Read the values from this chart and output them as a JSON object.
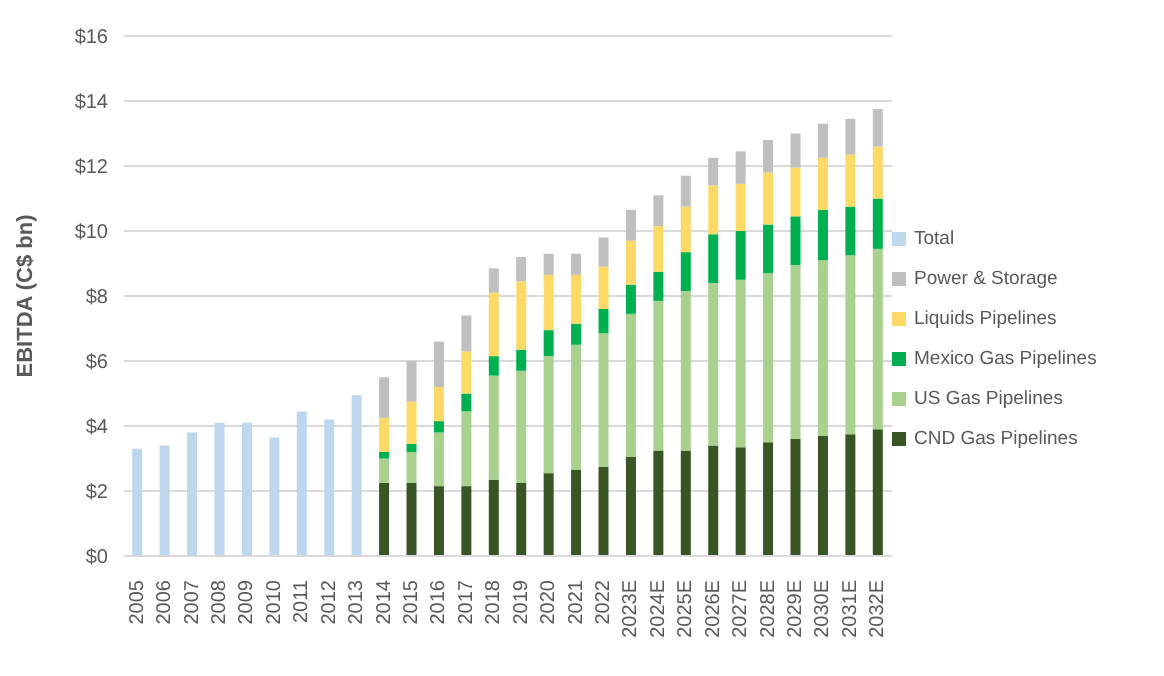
{
  "chart_data": {
    "type": "bar",
    "ylabel": "EBITDA (C$ bn)",
    "stacked": true,
    "grid": "y",
    "legend": "right",
    "categories": [
      "2005",
      "2006",
      "2007",
      "2008",
      "2009",
      "2010",
      "2011",
      "2012",
      "2013",
      "2014",
      "2015",
      "2016",
      "2017",
      "2018",
      "2019",
      "2020",
      "2021",
      "2022",
      "2023E",
      "2024E",
      "2025E",
      "2026E",
      "2027E",
      "2028E",
      "2029E",
      "2030E",
      "2031E",
      "2032E"
    ],
    "ylim": [
      0,
      16
    ],
    "yticks": [
      {
        "value": 0,
        "label": "$0"
      },
      {
        "value": 2,
        "label": "$2"
      },
      {
        "value": 4,
        "label": "$4"
      },
      {
        "value": 6,
        "label": "$6"
      },
      {
        "value": 8,
        "label": "$8"
      },
      {
        "value": 10,
        "label": "$10"
      },
      {
        "value": 12,
        "label": "$12"
      },
      {
        "value": 14,
        "label": "$14"
      },
      {
        "value": 16,
        "label": "$16"
      }
    ],
    "series": [
      {
        "name": "CND Gas Pipelines",
        "color": "#375623",
        "values": [
          null,
          null,
          null,
          null,
          null,
          null,
          null,
          null,
          null,
          2.25,
          2.25,
          2.15,
          2.15,
          2.35,
          2.25,
          2.55,
          2.65,
          2.75,
          3.05,
          3.25,
          3.25,
          3.4,
          3.35,
          3.5,
          3.6,
          3.7,
          3.75,
          3.9
        ]
      },
      {
        "name": "US Gas Pipelines",
        "color": "#a9d18e",
        "values": [
          null,
          null,
          null,
          null,
          null,
          null,
          null,
          null,
          null,
          0.75,
          0.95,
          1.65,
          2.3,
          3.2,
          3.45,
          3.6,
          3.85,
          4.1,
          4.4,
          4.6,
          4.9,
          5.0,
          5.15,
          5.2,
          5.35,
          5.4,
          5.5,
          5.55
        ]
      },
      {
        "name": "Mexico Gas Pipelines",
        "color": "#00b050",
        "values": [
          null,
          null,
          null,
          null,
          null,
          null,
          null,
          null,
          null,
          0.2,
          0.25,
          0.35,
          0.55,
          0.6,
          0.65,
          0.8,
          0.65,
          0.75,
          0.9,
          0.9,
          1.2,
          1.5,
          1.5,
          1.5,
          1.5,
          1.55,
          1.5,
          1.55
        ]
      },
      {
        "name": "Liquids Pipelines",
        "color": "#ffd966",
        "values": [
          null,
          null,
          null,
          null,
          null,
          null,
          null,
          null,
          null,
          1.05,
          1.3,
          1.05,
          1.3,
          1.95,
          2.1,
          1.7,
          1.5,
          1.3,
          1.35,
          1.4,
          1.4,
          1.5,
          1.45,
          1.6,
          1.5,
          1.6,
          1.6,
          1.6
        ]
      },
      {
        "name": "Power & Storage",
        "color": "#bfbfbf",
        "values": [
          null,
          null,
          null,
          null,
          null,
          null,
          null,
          null,
          null,
          1.25,
          1.25,
          1.4,
          1.1,
          0.75,
          0.75,
          0.65,
          0.65,
          0.9,
          0.95,
          0.95,
          0.95,
          0.85,
          1.0,
          1.0,
          1.05,
          1.05,
          1.1,
          1.15
        ]
      },
      {
        "name": "Total",
        "color": "#bdd7ee",
        "values": [
          3.3,
          3.4,
          3.8,
          4.1,
          4.1,
          3.65,
          4.45,
          4.2,
          4.95,
          null,
          null,
          null,
          null,
          null,
          null,
          null,
          null,
          null,
          null,
          null,
          null,
          null,
          null,
          null,
          null,
          null,
          null,
          null
        ]
      }
    ]
  }
}
